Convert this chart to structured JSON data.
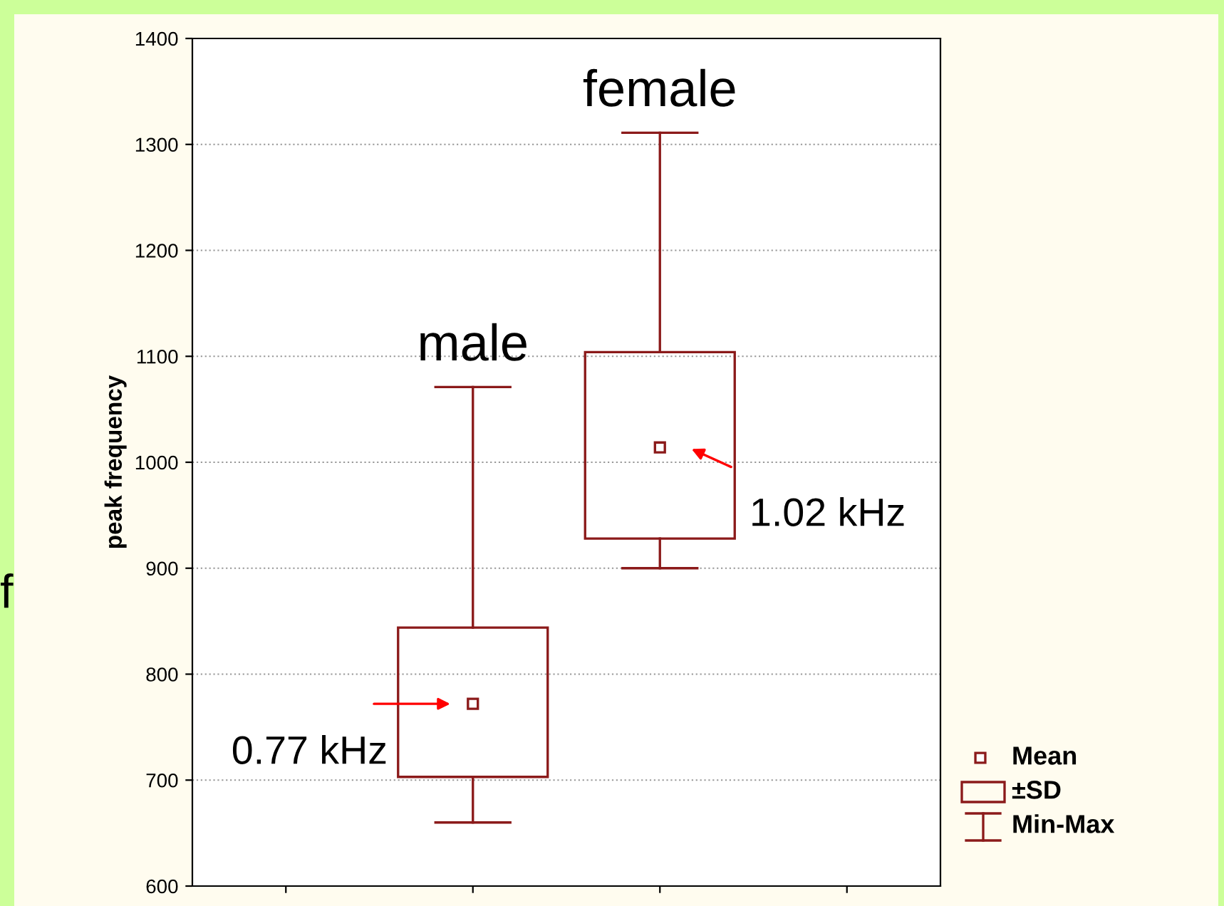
{
  "chart_data": {
    "type": "box",
    "ylabel": "peak frequency",
    "categories": [
      "male",
      "female"
    ],
    "boxes": [
      {
        "low": 660,
        "q1": 703,
        "q3": 844,
        "high": 1071,
        "mean": 772
      },
      {
        "low": 900,
        "q1": 928,
        "q3": 1104,
        "high": 1311,
        "mean": 1014
      }
    ],
    "color": "#8b1a1a",
    "ylim": [
      600,
      1400
    ],
    "yticks": [
      600,
      700,
      800,
      900,
      1000,
      1100,
      1200,
      1300,
      1400
    ],
    "grid": "y",
    "tick_labels": "y",
    "annotations": [
      "0.77 kHz",
      "1.02 kHz",
      "f",
      "Mean",
      "±SD",
      "Min-Max"
    ]
  }
}
